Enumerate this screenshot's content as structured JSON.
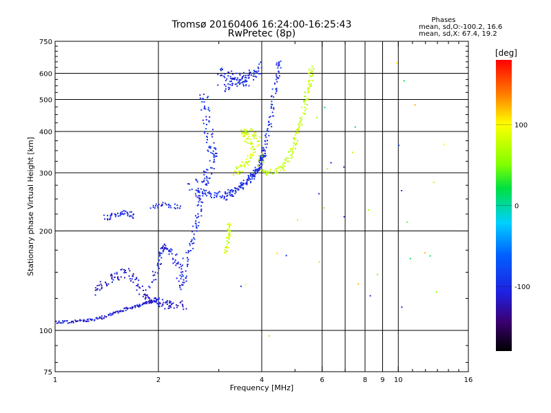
{
  "chart_data": {
    "type": "scatter",
    "title": "Tromsø 20160406 16:24:00-16:25:43",
    "subtitle": "RwPretec (8p)",
    "xlabel": "Frequency [MHz]",
    "ylabel": "Stationary phase Virtual Height [km]",
    "x_scale": "log",
    "y_scale": "log",
    "xlim": [
      1,
      16
    ],
    "ylim": [
      75,
      750
    ],
    "x_ticks": [
      1,
      2,
      4,
      6,
      8,
      9,
      10,
      16
    ],
    "x_tick_labels": [
      "1",
      "2",
      "4",
      "6",
      "8",
      "9",
      "10",
      "16"
    ],
    "x_gridlines": [
      2,
      4,
      6,
      7,
      8,
      9,
      10
    ],
    "y_ticks": [
      75,
      100,
      200,
      300,
      400,
      500,
      600,
      750
    ],
    "y_tick_labels": [
      "75",
      "100",
      "200",
      "300",
      "400",
      "500",
      "600",
      "750"
    ],
    "y_gridlines": [
      100,
      200,
      300,
      400,
      500,
      600
    ],
    "grid": true,
    "legend": {
      "title": "Phases",
      "line1": "mean, sd,O:-100.2, 16.6",
      "line2": "mean, sd,X:  67.4, 19.2",
      "placement": "top-right"
    },
    "colorbar": {
      "label": "[deg]",
      "range": [
        -180,
        180
      ],
      "ticks": [
        100,
        0,
        -100
      ],
      "tick_labels": [
        "100",
        "0",
        "-100"
      ],
      "colormap": "rainbow"
    },
    "traces": [
      {
        "name": "",
        "phase": -110,
        "spread": 0.012,
        "points": [
          [
            1.0,
            106
          ],
          [
            1.1,
            106
          ],
          [
            1.2,
            107
          ],
          [
            1.3,
            108
          ],
          [
            1.4,
            110
          ],
          [
            1.5,
            113
          ],
          [
            1.6,
            116
          ],
          [
            1.7,
            118
          ],
          [
            1.8,
            120
          ],
          [
            1.9,
            122
          ],
          [
            2.0,
            125
          ]
        ]
      },
      {
        "name": "",
        "phase": -115,
        "spread": 0.04,
        "points": [
          [
            1.3,
            130
          ],
          [
            1.4,
            140
          ],
          [
            1.5,
            145
          ],
          [
            1.6,
            150
          ],
          [
            1.7,
            140
          ],
          [
            1.8,
            130
          ],
          [
            1.9,
            125
          ],
          [
            2.0,
            122
          ],
          [
            2.1,
            120
          ],
          [
            2.2,
            118
          ],
          [
            2.4,
            120
          ]
        ]
      },
      {
        "name": "",
        "phase": -105,
        "spread": 0.035,
        "points": [
          [
            1.9,
            135
          ],
          [
            2.0,
            160
          ],
          [
            2.05,
            175
          ],
          [
            2.1,
            180
          ],
          [
            2.2,
            170
          ],
          [
            2.3,
            150
          ],
          [
            2.35,
            135
          ],
          [
            2.4,
            160
          ],
          [
            2.5,
            185
          ],
          [
            2.6,
            210
          ],
          [
            2.65,
            240
          ],
          [
            2.6,
            260
          ]
        ]
      },
      {
        "name": "",
        "phase": -100,
        "spread": 0.025,
        "points": [
          [
            1.4,
            220
          ],
          [
            1.5,
            222
          ],
          [
            1.6,
            228
          ],
          [
            1.7,
            222
          ]
        ]
      },
      {
        "name": "",
        "phase": -105,
        "spread": 0.02,
        "points": [
          [
            1.9,
            238
          ],
          [
            2.1,
            240
          ],
          [
            2.3,
            236
          ]
        ]
      },
      {
        "name": "",
        "phase": -95,
        "spread": 0.03,
        "points": [
          [
            2.6,
            262
          ],
          [
            2.8,
            258
          ],
          [
            3.0,
            256
          ],
          [
            3.3,
            262
          ],
          [
            3.6,
            280
          ],
          [
            3.8,
            300
          ],
          [
            3.95,
            320
          ],
          [
            4.05,
            340
          ],
          [
            4.15,
            380
          ],
          [
            4.25,
            440
          ],
          [
            4.35,
            520
          ],
          [
            4.45,
            600
          ],
          [
            4.5,
            660
          ]
        ]
      },
      {
        "name": "",
        "phase": -95,
        "spread": 0.05,
        "points": [
          [
            2.5,
            270
          ],
          [
            2.7,
            280
          ],
          [
            2.8,
            300
          ],
          [
            2.9,
            330
          ],
          [
            2.85,
            360
          ],
          [
            2.8,
            400
          ],
          [
            2.75,
            460
          ],
          [
            2.7,
            520
          ]
        ]
      },
      {
        "name": "",
        "phase": -100,
        "spread": 0.04,
        "points": [
          [
            3.0,
            610
          ],
          [
            3.2,
            590
          ],
          [
            3.5,
            580
          ],
          [
            3.8,
            590
          ],
          [
            4.0,
            630
          ],
          [
            3.1,
            540
          ],
          [
            3.4,
            560
          ],
          [
            3.7,
            570
          ],
          [
            3.05,
            570
          ]
        ]
      },
      {
        "name": "",
        "phase": -105,
        "spread": 0.03,
        "points": [
          [
            3.1,
            250
          ],
          [
            3.3,
            262
          ],
          [
            3.5,
            275
          ],
          [
            3.7,
            290
          ],
          [
            3.85,
            305
          ],
          [
            4.0,
            325
          ],
          [
            4.1,
            345
          ]
        ]
      },
      {
        "name": "",
        "phase": 80,
        "spread": 0.03,
        "points": [
          [
            3.35,
            300
          ],
          [
            3.5,
            310
          ],
          [
            3.7,
            330
          ],
          [
            3.8,
            350
          ],
          [
            3.6,
            380
          ],
          [
            3.5,
            400
          ],
          [
            3.7,
            400
          ],
          [
            3.9,
            385
          ],
          [
            4.0,
            300
          ]
        ]
      },
      {
        "name": "",
        "phase": 75,
        "spread": 0.025,
        "points": [
          [
            4.0,
            300
          ],
          [
            4.3,
            302
          ],
          [
            4.6,
            310
          ],
          [
            4.8,
            330
          ],
          [
            4.95,
            360
          ],
          [
            5.05,
            390
          ],
          [
            5.2,
            430
          ],
          [
            5.35,
            480
          ],
          [
            5.45,
            530
          ],
          [
            5.55,
            580
          ],
          [
            5.6,
            630
          ]
        ]
      },
      {
        "name": "",
        "phase": 80,
        "spread": 0.02,
        "points": [
          [
            3.15,
            170
          ],
          [
            3.18,
            185
          ],
          [
            3.2,
            200
          ],
          [
            3.22,
            210
          ]
        ]
      },
      {
        "name": "",
        "phase": -90,
        "spread": 0.4,
        "points": [
          [
            6.1,
            340
          ],
          [
            6.5,
            300
          ],
          [
            7.0,
            290
          ],
          [
            8.8,
            230
          ],
          [
            9.8,
            150
          ],
          [
            9.9,
            100
          ],
          [
            9.9,
            560
          ],
          [
            9.85,
            420
          ],
          [
            9.8,
            230
          ],
          [
            3.95,
            110
          ],
          [
            4.4,
            140
          ]
        ]
      },
      {
        "name": "",
        "phase": 60,
        "spread": 0.4,
        "points": [
          [
            5.7,
            560
          ],
          [
            6.4,
            440
          ],
          [
            6.7,
            270
          ],
          [
            8.4,
            170
          ],
          [
            10.3,
            200
          ],
          [
            12.0,
            270
          ],
          [
            12.2,
            180
          ],
          [
            6.1,
            170
          ],
          [
            4.7,
            640
          ],
          [
            4.9,
            85
          ],
          [
            5.2,
            390
          ],
          [
            9.7,
            260
          ]
        ]
      },
      {
        "name": "",
        "phase": 110,
        "spread": 0.35,
        "points": [
          [
            5.6,
            200
          ],
          [
            8.6,
            120
          ],
          [
            9.7,
            135
          ],
          [
            9.8,
            640
          ],
          [
            12.0,
            520
          ],
          [
            14.5,
            400
          ],
          [
            4.0,
            105
          ],
          [
            4.6,
            140
          ]
        ]
      },
      {
        "name": "",
        "phase": 5,
        "spread": 0.3,
        "points": [
          [
            6.4,
            485
          ],
          [
            8.6,
            450
          ],
          [
            10.9,
            530
          ],
          [
            12.6,
            155
          ],
          [
            9.9,
            205
          ]
        ]
      }
    ]
  }
}
